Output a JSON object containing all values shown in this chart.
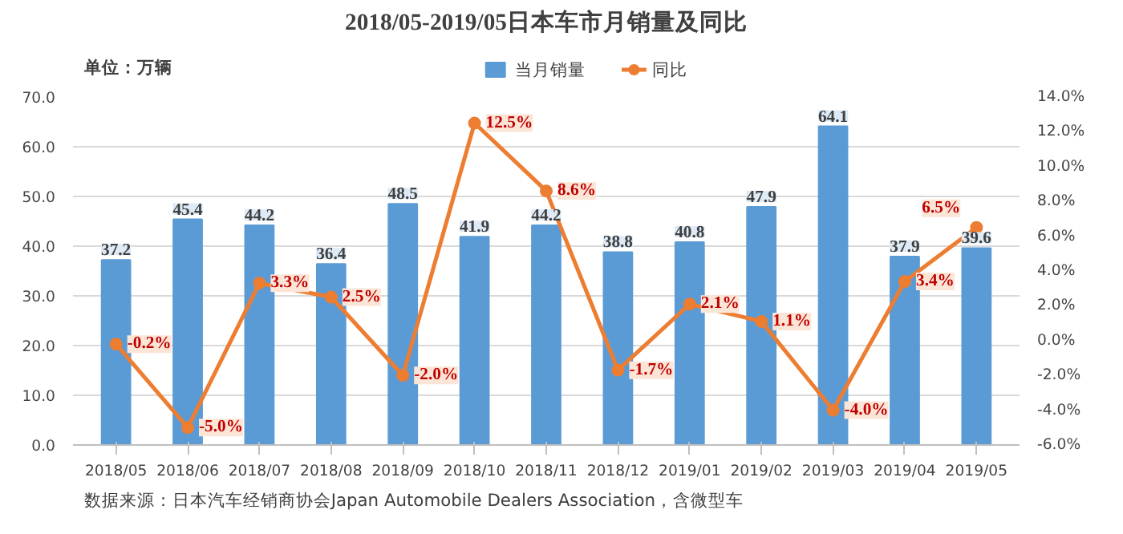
{
  "chart_data": {
    "type": "bar",
    "title": "2018/05-2019/05日本车市月销量及同比",
    "ylabel": "单位：万辆",
    "categories": [
      "2018/05",
      "2018/06",
      "2018/07",
      "2018/08",
      "2018/09",
      "2018/10",
      "2018/11",
      "2018/12",
      "2019/01",
      "2019/02",
      "2019/03",
      "2019/04",
      "2019/05"
    ],
    "series": [
      {
        "name": "当月销量",
        "color": "#5b9bd5",
        "values": [
          37.2,
          45.4,
          44.2,
          36.4,
          48.5,
          41.9,
          44.2,
          38.8,
          40.8,
          47.9,
          64.1,
          37.9,
          39.6
        ],
        "value_labels": [
          "37.2",
          "45.4",
          "44.2",
          "36.4",
          "48.5",
          "41.9",
          "44.2",
          "38.8",
          "40.8",
          "47.9",
          "64.1",
          "37.9",
          "39.6"
        ]
      },
      {
        "name": "同比",
        "type": "line",
        "axis": "y2",
        "color": "#ed7d31",
        "marker": "circle",
        "values": [
          -0.2,
          -5.0,
          3.3,
          2.5,
          -2.0,
          12.5,
          8.6,
          -1.7,
          2.1,
          1.1,
          -4.0,
          3.4,
          6.5
        ],
        "value_labels": [
          "-0.2%",
          "-5.0%",
          "3.3%",
          "2.5%",
          "-2.0%",
          "12.5%",
          "8.6%",
          "-1.7%",
          "2.1%",
          "1.1%",
          "-4.0%",
          "3.4%",
          "6.5%"
        ]
      }
    ],
    "ylim": [
      0,
      70
    ],
    "yticks": [
      {
        "value": 0,
        "label": "0.0"
      },
      {
        "value": 10,
        "label": "10.0"
      },
      {
        "value": 20,
        "label": "20.0"
      },
      {
        "value": 30,
        "label": "30.0"
      },
      {
        "value": 40,
        "label": "40.0"
      },
      {
        "value": 50,
        "label": "50.0"
      },
      {
        "value": 60,
        "label": "60.0"
      },
      {
        "value": 70,
        "label": "70.0"
      }
    ],
    "y2lim": [
      -6,
      14
    ],
    "y2ticks": [
      {
        "value": -6,
        "label": "-6.0%"
      },
      {
        "value": -4,
        "label": "-4.0%"
      },
      {
        "value": -2,
        "label": "-2.0%"
      },
      {
        "value": 0,
        "label": "0.0%"
      },
      {
        "value": 2,
        "label": "2.0%"
      },
      {
        "value": 4,
        "label": "4.0%"
      },
      {
        "value": 6,
        "label": "6.0%"
      },
      {
        "value": 8,
        "label": "8.0%"
      },
      {
        "value": 10,
        "label": "10.0%"
      },
      {
        "value": 12,
        "label": "12.0%"
      },
      {
        "value": 14,
        "label": "14.0%"
      }
    ],
    "grid": "y",
    "legend": "top",
    "annotations": [
      "数据来源：日本汽车经销商协会Japan Automobile Dealers Association，含微型车"
    ]
  }
}
